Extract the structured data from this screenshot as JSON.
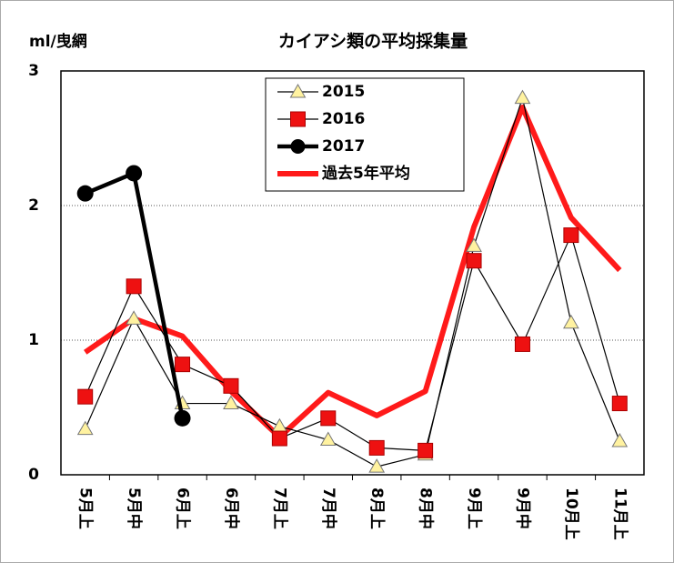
{
  "chart_data": {
    "type": "line",
    "title": "カイアシ類の平均採集量",
    "ylabel": "ml/曳網",
    "categories": [
      "5月上",
      "5月中",
      "6月上",
      "6月中",
      "7月上",
      "7月中",
      "8月上",
      "8月中",
      "9月上",
      "9月中",
      "10月上",
      "11月上"
    ],
    "series": [
      {
        "name": "過去5年平均",
        "color": "#ff1a1a",
        "values": [
          0.91,
          1.16,
          1.03,
          0.62,
          0.28,
          0.61,
          0.44,
          0.62,
          1.84,
          2.73,
          1.91,
          1.52
        ]
      },
      {
        "name": "2015",
        "color": "#fff2a0",
        "values": [
          0.34,
          1.16,
          0.53,
          0.53,
          0.36,
          0.26,
          0.06,
          0.15,
          1.7,
          2.8,
          1.13,
          0.25
        ]
      },
      {
        "name": "2016",
        "color": "#ee1111",
        "values": [
          0.58,
          1.4,
          0.82,
          0.66,
          0.27,
          0.42,
          0.2,
          0.18,
          1.59,
          0.97,
          1.78,
          0.53
        ]
      },
      {
        "name": "2017",
        "color": "#000000",
        "values": [
          2.09,
          2.24,
          0.42,
          null,
          null,
          null,
          null,
          null,
          null,
          null,
          null,
          null
        ]
      }
    ],
    "ylim": [
      0,
      3
    ],
    "yticks": [
      0,
      1,
      2,
      3
    ],
    "grid": true
  }
}
